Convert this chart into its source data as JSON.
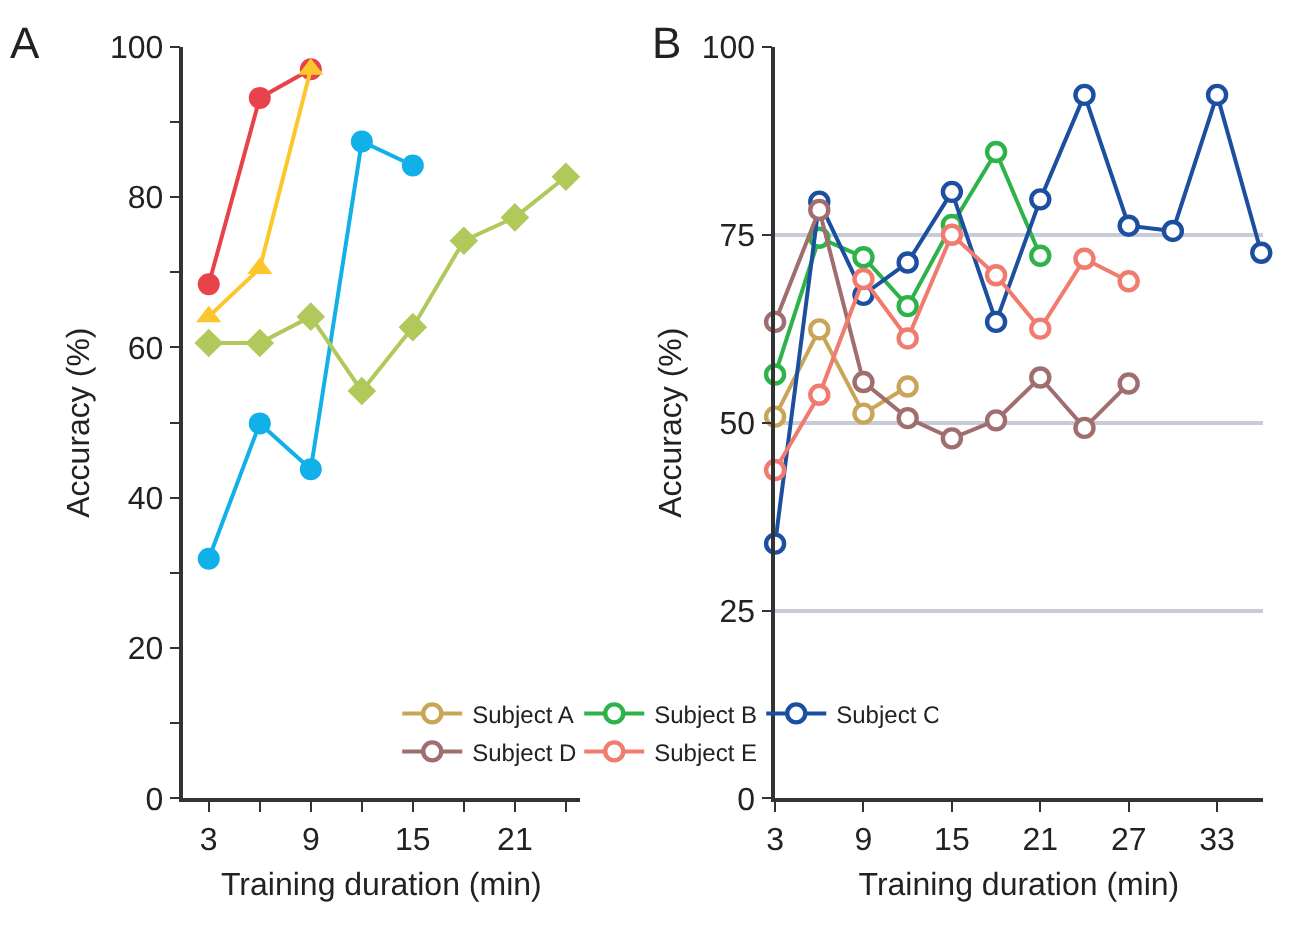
{
  "chart_data": [
    {
      "type": "line",
      "title": "A",
      "xlabel": "Training duration (min)",
      "ylabel": "Accuracy (%)",
      "xlim": [
        1.5,
        24.8
      ],
      "ylim": [
        0,
        100
      ],
      "xticks": [
        3,
        {
          "value": 6,
          "label": null
        },
        9,
        {
          "value": 12,
          "label": null
        },
        15,
        {
          "value": 18,
          "label": null
        },
        21,
        {
          "value": 24,
          "label": null
        }
      ],
      "yticks": [
        0,
        {
          "value": 10,
          "label": null
        },
        20,
        {
          "value": 30,
          "label": null
        },
        40,
        {
          "value": 50,
          "label": null
        },
        60,
        {
          "value": 70,
          "label": null
        },
        80,
        {
          "value": 90,
          "label": null
        },
        100
      ],
      "grid": false,
      "legend": false,
      "line_style": "solid",
      "series": [
        {
          "color": "#e8434a",
          "marker": "circle",
          "x": [
            3,
            6,
            9
          ],
          "values": [
            68.4,
            93.2,
            97
          ]
        },
        {
          "color": "#fcc72c",
          "marker": "triangle",
          "x": [
            3,
            6,
            9
          ],
          "values": [
            64.1,
            70.5,
            97
          ]
        },
        {
          "color": "#12b0e8",
          "marker": "circle",
          "x": [
            3,
            6,
            9,
            12,
            15
          ],
          "values": [
            31.9,
            49.9,
            43.8,
            87.4,
            84.2
          ]
        },
        {
          "color": "#b0c95a",
          "marker": "diamond",
          "x": [
            3,
            6,
            9,
            12,
            15,
            18,
            21,
            24
          ],
          "values": [
            60.6,
            60.6,
            64.1,
            54.2,
            62.7,
            74.2,
            77.3,
            82.7
          ]
        }
      ]
    },
    {
      "type": "line",
      "title": "B",
      "xlabel": "Training duration (min)",
      "ylabel": "Accuracy (%)",
      "xlim": [
        3,
        36.1
      ],
      "ylim": [
        0,
        100
      ],
      "xticks": [
        3,
        9,
        15,
        21,
        27,
        33
      ],
      "yticks": [
        0,
        25,
        50,
        75,
        100
      ],
      "grid": "y",
      "legend": "bottom left",
      "marker": "circle",
      "line_style": "solid",
      "series": [
        {
          "name": "Subject A",
          "color": "#c9a55a",
          "x": [
            3,
            6,
            9,
            12
          ],
          "values": [
            50.8,
            62.4,
            51.2,
            54.8
          ]
        },
        {
          "name": "Subject B",
          "color": "#2db34a",
          "x": [
            3,
            6,
            9,
            12,
            15,
            18,
            21
          ],
          "values": [
            56.4,
            74.6,
            72,
            65.5,
            76.3,
            86,
            72.2
          ]
        },
        {
          "name": "Subject C",
          "color": "#1c4fa0",
          "x": [
            3,
            6,
            9,
            12,
            15,
            18,
            21,
            24,
            27,
            30,
            33,
            36
          ],
          "values": [
            33.9,
            79.4,
            67,
            71.3,
            80.7,
            63.4,
            79.7,
            93.6,
            76.2,
            75.5,
            93.6,
            72.6
          ]
        },
        {
          "name": "Subject D",
          "color": "#a06e6e",
          "x": [
            3,
            6,
            9,
            12,
            15,
            18,
            21,
            24,
            27
          ],
          "values": [
            63.4,
            78.3,
            55.4,
            50.6,
            47.9,
            50.3,
            56,
            49.3,
            55.2
          ]
        },
        {
          "name": "Subject E",
          "color": "#f07b6e",
          "x": [
            3,
            6,
            9,
            12,
            15,
            18,
            21,
            24,
            27
          ],
          "values": [
            43.7,
            53.7,
            69.1,
            61.2,
            75,
            69.6,
            62.5,
            71.8,
            68.8
          ]
        }
      ]
    }
  ]
}
